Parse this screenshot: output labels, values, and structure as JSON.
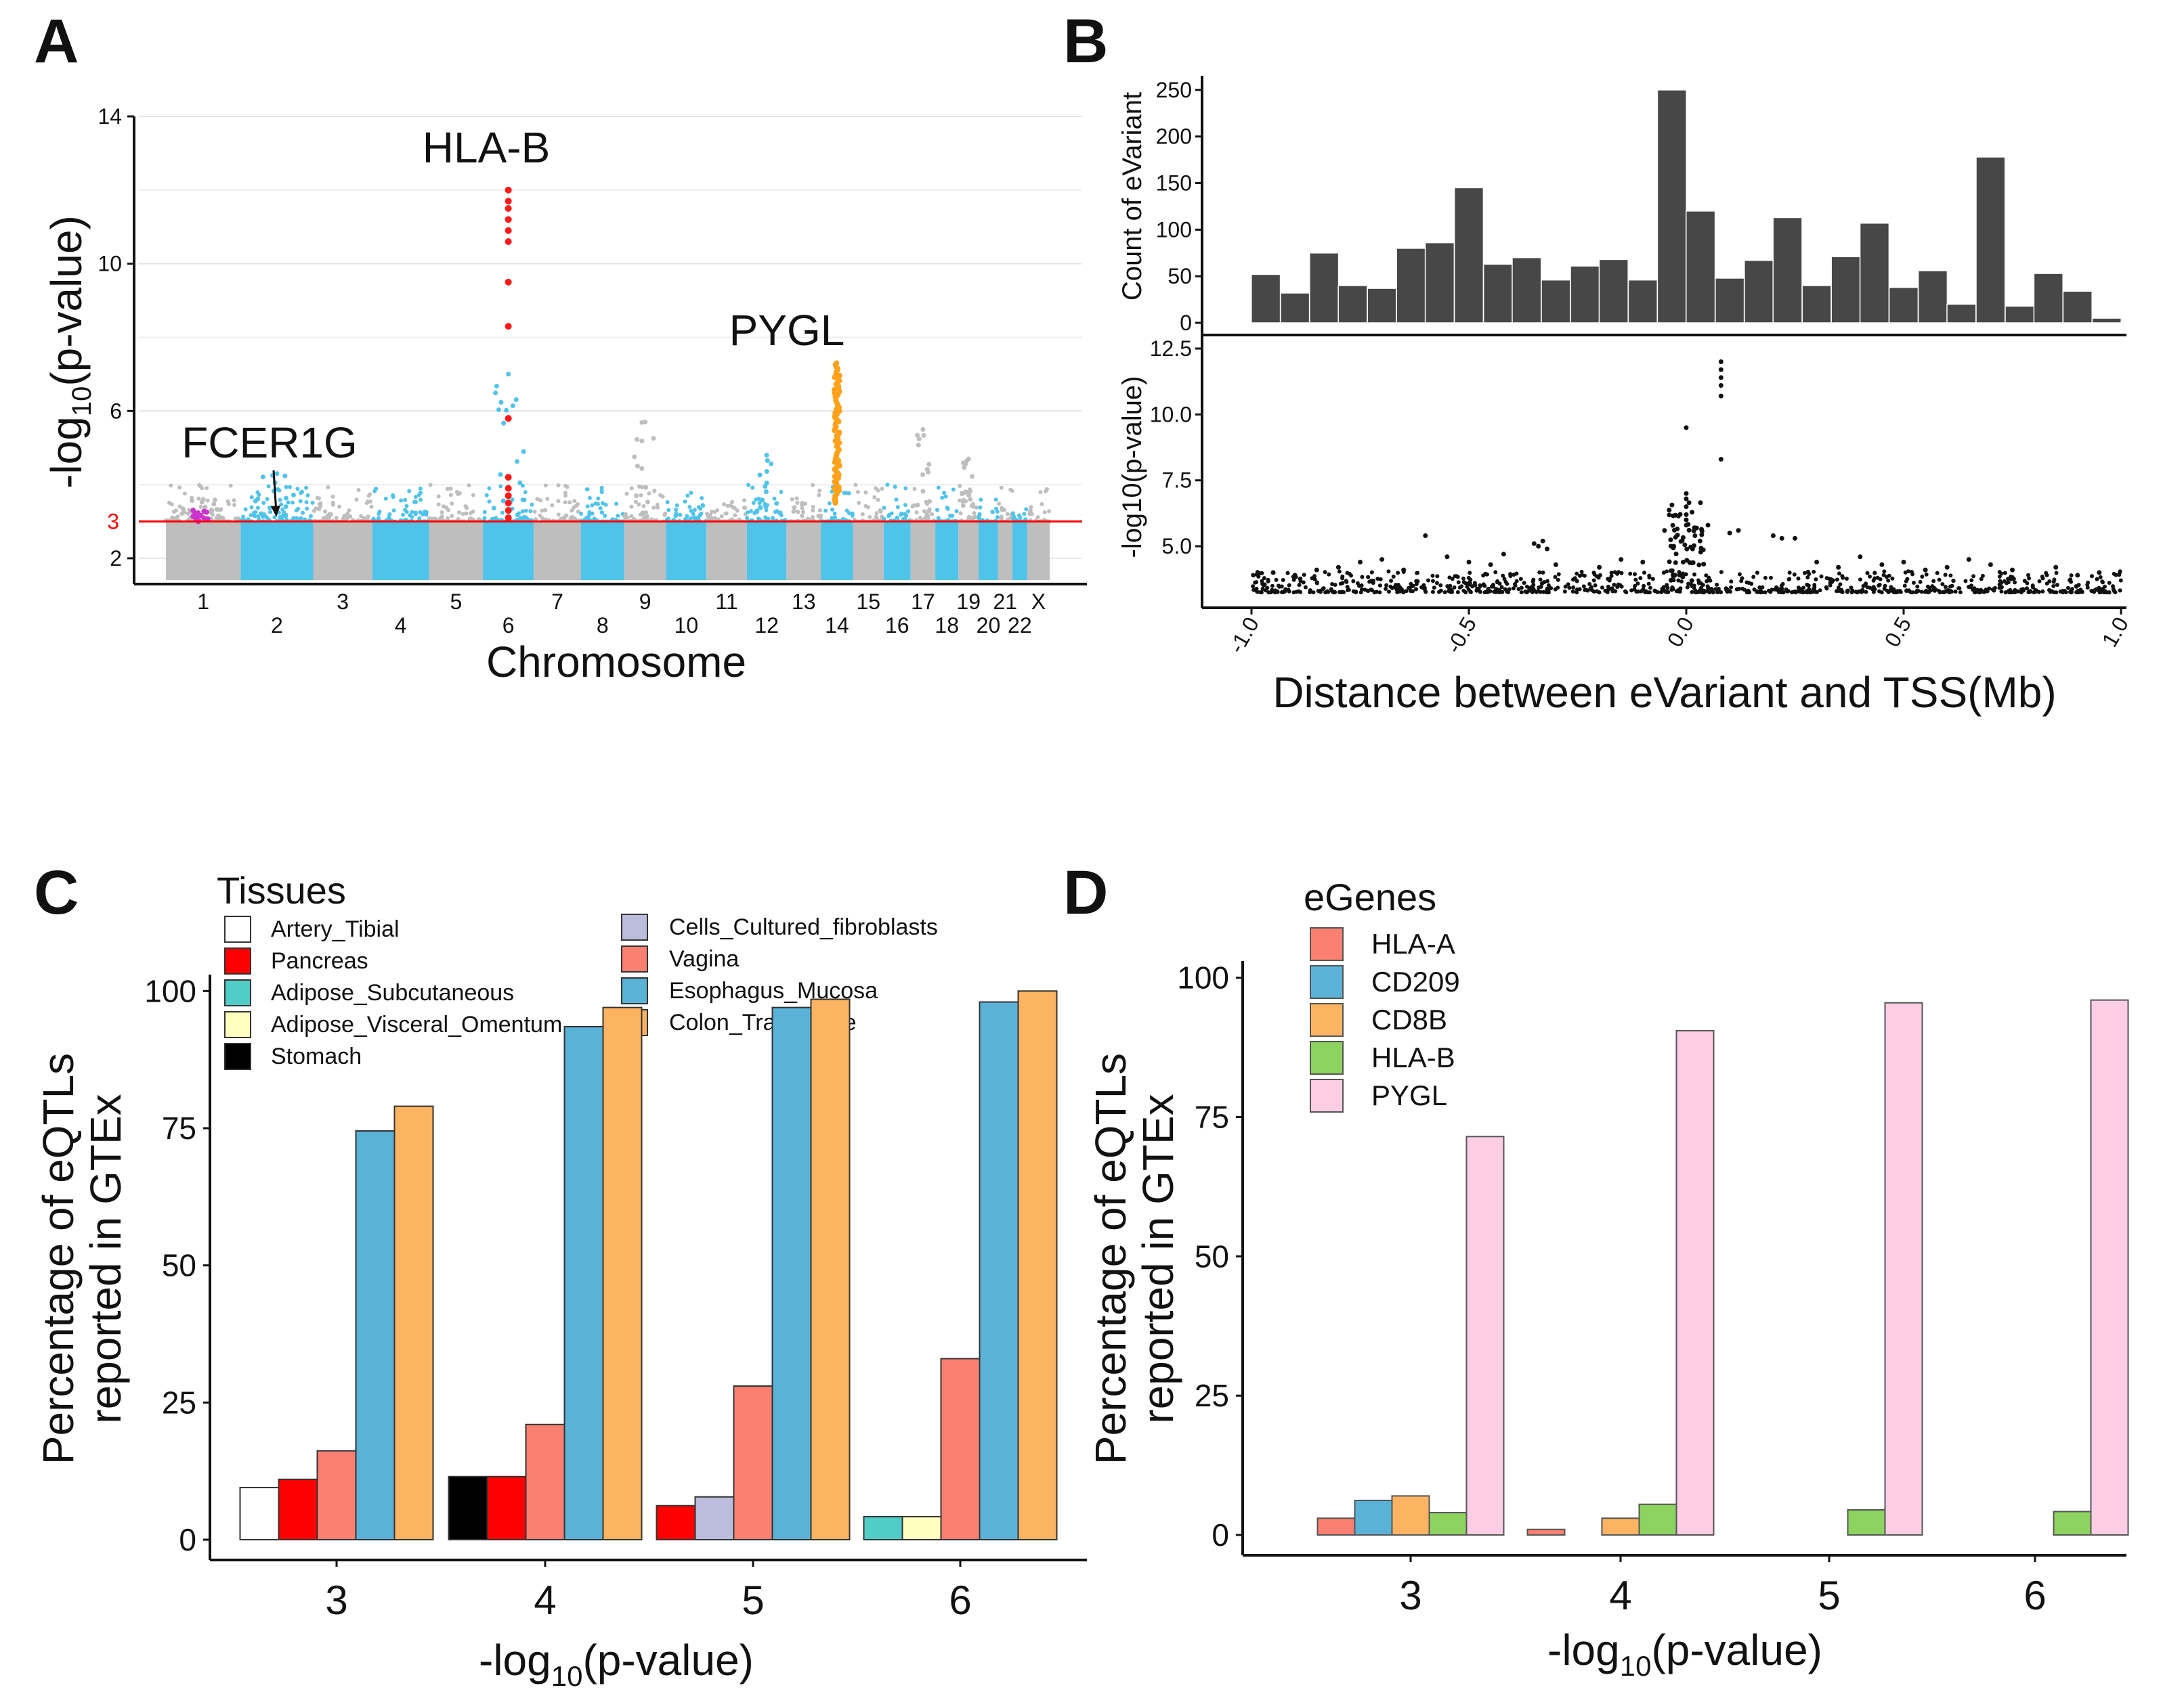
{
  "panels": {
    "A": {
      "letter": "A",
      "chart_data": {
        "type": "scatter",
        "subtype": "manhattan",
        "xlabel": "Chromosome",
        "ylabel": "-log10(p-value)",
        "ylim": [
          1.3,
          14
        ],
        "yticks": [
          2,
          6,
          10,
          14
        ],
        "threshold": {
          "value": 3,
          "label": "3",
          "color": "#ff0000"
        },
        "chromosomes_top_row": [
          "1",
          "3",
          "5",
          "7",
          "9",
          "11",
          "13",
          "15",
          "17",
          "19",
          "21",
          "X"
        ],
        "chromosomes_bottom_row": [
          "2",
          "4",
          "6",
          "8",
          "10",
          "12",
          "14",
          "16",
          "18",
          "20",
          "22"
        ],
        "colors": {
          "odd": "#bebebe",
          "even": "#4fc3ea",
          "HLA-B": "#ff1a1a",
          "PYGL": "#ffa11a",
          "FCER1G": "#cc33cc"
        },
        "peaks": [
          {
            "chromosome": "1",
            "max_value": 3.6,
            "color": "#bebebe"
          },
          {
            "chromosome": "2",
            "max_value": 4.3,
            "color": "#4fc3ea"
          },
          {
            "chromosome": "6",
            "max_value": 7.0,
            "color": "#4fc3ea"
          },
          {
            "chromosome": "9",
            "max_value": 5.7,
            "color": "#bebebe"
          },
          {
            "chromosome": "12",
            "max_value": 4.8,
            "color": "#4fc3ea"
          },
          {
            "chromosome": "17",
            "max_value": 5.5,
            "color": "#bebebe"
          },
          {
            "chromosome": "19",
            "max_value": 4.7,
            "color": "#bebebe"
          }
        ],
        "highlighted_genes": [
          {
            "gene": "HLA-B",
            "chromosome": "6",
            "values": [
              12.0,
              11.7,
              11.5,
              11.2,
              10.9,
              10.6,
              9.5,
              8.3,
              5.8,
              4.2,
              3.9,
              3.7,
              3.5,
              3.3,
              3.1
            ]
          },
          {
            "gene": "PYGL",
            "chromosome": "14",
            "range": [
              3.5,
              7.3
            ]
          },
          {
            "gene": "FCER1G",
            "chromosome": "1",
            "range": [
              3.0,
              3.3
            ]
          }
        ],
        "annotations": [
          "HLA-B",
          "PYGL",
          "FCER1G"
        ]
      }
    },
    "B": {
      "letter": "B",
      "chart_data": [
        {
          "type": "bar",
          "subtype": "histogram",
          "ylabel": "Count of eVariant",
          "ylim": [
            0,
            255
          ],
          "yticks": [
            0,
            50,
            100,
            150,
            200,
            250
          ],
          "xlim": [
            -1.0,
            1.0
          ],
          "bin_centers": [
            -0.967,
            -0.9,
            -0.833,
            -0.767,
            -0.7,
            -0.633,
            -0.567,
            -0.5,
            -0.433,
            -0.367,
            -0.3,
            -0.233,
            -0.167,
            -0.1,
            -0.033,
            0.033,
            0.1,
            0.167,
            0.233,
            0.3,
            0.367,
            0.433,
            0.5,
            0.567,
            0.633,
            0.7,
            0.767,
            0.833,
            0.9,
            0.967
          ],
          "values": [
            52,
            32,
            75,
            40,
            37,
            80,
            86,
            145,
            63,
            70,
            46,
            61,
            68,
            46,
            250,
            120,
            48,
            67,
            113,
            40,
            71,
            107,
            38,
            56,
            20,
            178,
            18,
            53,
            34,
            5
          ],
          "color": "#474747"
        },
        {
          "type": "scatter",
          "xlabel": "Distance between eVariant and TSS(Mb)",
          "ylabel": "-log10(p-value)",
          "xlim": [
            -1.0,
            1.0
          ],
          "ylim": [
            3.0,
            12.5
          ],
          "xticks": [
            -1.0,
            -0.5,
            0.0,
            0.5,
            1.0
          ],
          "yticks": [
            5.0,
            7.5,
            10.0,
            12.5
          ],
          "points": [
            [
              0.0,
              7.0
            ],
            [
              0.0,
              6.8
            ],
            [
              0.0,
              6.5
            ],
            [
              0.0,
              6.2
            ],
            [
              0.0,
              6.0
            ],
            [
              0.0,
              5.8
            ],
            [
              0.0,
              9.5
            ],
            [
              0.08,
              12.0
            ],
            [
              0.08,
              11.7
            ],
            [
              0.08,
              11.4
            ],
            [
              0.08,
              11.1
            ],
            [
              0.08,
              10.7
            ],
            [
              0.08,
              8.3
            ],
            [
              -0.35,
              5.1
            ],
            [
              -0.34,
              5.0
            ],
            [
              -0.33,
              5.2
            ],
            [
              -0.32,
              4.9
            ],
            [
              -0.6,
              5.4
            ],
            [
              0.2,
              5.4
            ],
            [
              0.22,
              5.3
            ],
            [
              0.25,
              5.3
            ],
            [
              0.1,
              5.5
            ],
            [
              0.12,
              5.6
            ],
            [
              0.05,
              5.8
            ],
            [
              -0.05,
              5.6
            ],
            [
              0.02,
              5.4
            ],
            [
              -0.8,
              4.2
            ],
            [
              -0.75,
              4.4
            ],
            [
              -0.7,
              4.5
            ],
            [
              -0.65,
              4.1
            ],
            [
              -0.55,
              4.6
            ],
            [
              -0.5,
              4.4
            ],
            [
              -0.45,
              4.3
            ],
            [
              -0.42,
              4.7
            ],
            [
              -0.3,
              4.3
            ],
            [
              -0.2,
              4.2
            ],
            [
              -0.15,
              4.5
            ],
            [
              -0.1,
              4.4
            ],
            [
              0.3,
              4.4
            ],
            [
              0.35,
              4.2
            ],
            [
              0.4,
              4.6
            ],
            [
              0.45,
              4.3
            ],
            [
              0.5,
              4.4
            ],
            [
              0.55,
              4.1
            ],
            [
              0.6,
              4.2
            ],
            [
              0.65,
              4.5
            ],
            [
              0.7,
              4.3
            ],
            [
              0.75,
              4.1
            ],
            [
              0.85,
              4.2
            ],
            [
              0.9,
              3.9
            ],
            [
              0.95,
              4.0
            ],
            [
              -0.95,
              4.0
            ],
            [
              -0.9,
              3.9
            ],
            [
              -0.85,
              4.1
            ]
          ],
          "note": "dense band of points between 3.2 and 4.0 across the full distance range",
          "color": "#111111"
        }
      ]
    },
    "C": {
      "letter": "C",
      "legend_title": "Tissues",
      "chart_data": {
        "type": "bar",
        "xlabel": "-log10(p-value)",
        "ylabel_line1": "Percentage of eQTLs",
        "ylabel_line2": "reported in GTEx",
        "ylim": [
          0,
          103
        ],
        "yticks": [
          0,
          25,
          50,
          75,
          100
        ],
        "categories": [
          "3",
          "4",
          "5",
          "6"
        ],
        "series": [
          {
            "name": "Artery_Tibial",
            "color": "#ffffff",
            "values": [
              9.5,
              null,
              null,
              null
            ]
          },
          {
            "name": "Pancreas",
            "color": "#ff0000",
            "values": [
              11,
              11.5,
              6.2,
              null
            ]
          },
          {
            "name": "Adipose_Subcutaneous",
            "color": "#4fcdc6",
            "values": [
              null,
              null,
              null,
              4.2
            ]
          },
          {
            "name": "Adipose_Visceral_Omentum",
            "color": "#ffffbf",
            "values": [
              null,
              null,
              null,
              4.2
            ]
          },
          {
            "name": "Stomach",
            "color": "#000000",
            "values": [
              null,
              11.5,
              null,
              null
            ]
          },
          {
            "name": "Cells_Cultured_fibroblasts",
            "color": "#bcbddc",
            "values": [
              null,
              null,
              7.8,
              null
            ]
          },
          {
            "name": "Vagina",
            "color": "#fb8072",
            "values": [
              16.2,
              21,
              28,
              33
            ]
          },
          {
            "name": "Esophagus_Mucosa",
            "color": "#5ab2d6",
            "values": [
              74.5,
              93.5,
              97,
              98
            ]
          },
          {
            "name": "Colon_Transverse",
            "color": "#fdb462",
            "values": [
              79,
              97,
              98.5,
              100
            ]
          }
        ],
        "bars_drawn_per_category": [
          [
            "Artery_Tibial",
            "Pancreas",
            "Vagina",
            "Esophagus_Mucosa",
            "Colon_Transverse"
          ],
          [
            "Stomach",
            "Pancreas",
            "Vagina",
            "Esophagus_Mucosa",
            "Colon_Transverse"
          ],
          [
            "Pancreas",
            "Cells_Cultured_fibroblasts",
            "Vagina",
            "Esophagus_Mucosa",
            "Colon_Transverse"
          ],
          [
            "Adipose_Subcutaneous",
            "Adipose_Visceral_Omentum",
            "Vagina",
            "Esophagus_Mucosa",
            "Colon_Transverse"
          ]
        ]
      }
    },
    "D": {
      "letter": "D",
      "legend_title": "eGenes",
      "chart_data": {
        "type": "bar",
        "xlabel": "-log10(p-value)",
        "ylabel_line1": "Percentage of eQTLs",
        "ylabel_line2": "reported in GTEx",
        "ylim": [
          0,
          103
        ],
        "yticks": [
          0,
          25,
          50,
          75,
          100
        ],
        "categories": [
          "3",
          "4",
          "5",
          "6"
        ],
        "series": [
          {
            "name": "HLA-A",
            "color": "#fb8072",
            "values": [
              3,
              1,
              0,
              0
            ]
          },
          {
            "name": "CD209",
            "color": "#5ab2d6",
            "values": [
              6.2,
              0,
              0,
              0
            ]
          },
          {
            "name": "CD8B",
            "color": "#fdb462",
            "values": [
              7,
              3,
              0,
              0
            ]
          },
          {
            "name": "HLA-B",
            "color": "#8dd35f",
            "values": [
              4,
              5.5,
              4.5,
              4.2
            ]
          },
          {
            "name": "PYGL",
            "color": "#fccde5",
            "values": [
              71.5,
              90.5,
              95.5,
              96
            ]
          }
        ]
      }
    }
  }
}
